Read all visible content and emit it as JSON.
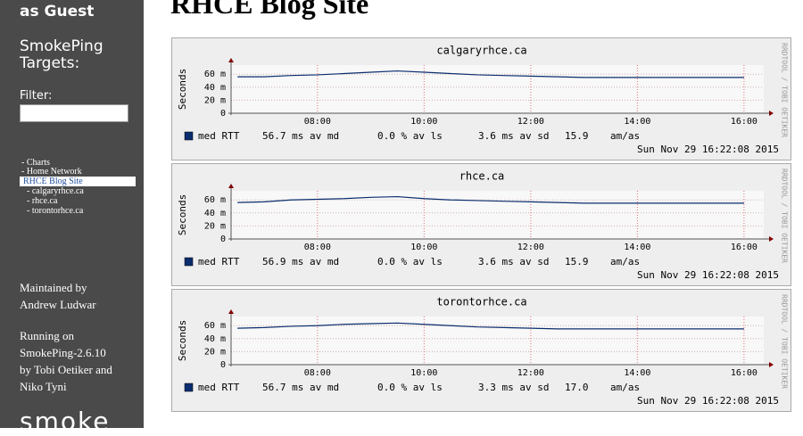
{
  "sidebar": {
    "login": "as Guest",
    "targets_title": [
      "SmokePing",
      "Targets:"
    ],
    "filter_label": "Filter:",
    "menu": [
      "- Charts",
      "- Home Network",
      "RHCE Blog Site",
      "- calgaryrhce.ca",
      "- rhce.ca",
      "- torontorhce.ca"
    ],
    "maintained": [
      "Maintained by",
      "Andrew Ludwar"
    ],
    "running": [
      "Running on",
      "SmokePing-2.6.10",
      "by Tobi Oetiker and",
      "Niko Tyni"
    ],
    "logo": "smoke"
  },
  "heading": "RHCE Blog Site",
  "graphs": [
    {
      "type": "line",
      "title": "calgaryrhce.ca",
      "ylabel": "Seconds",
      "color": "#0a2d6e",
      "grid": true,
      "ylim": [
        0,
        0.074
      ],
      "yticks": [
        0,
        {
          "value": 0.02,
          "label": "20 m"
        },
        {
          "value": 0.04,
          "label": "40 m"
        },
        {
          "value": 0.06,
          "label": "60 m"
        }
      ],
      "xlim": [
        6.38,
        16.37
      ],
      "xticks": [
        {
          "value": 8,
          "label": "08:00"
        },
        {
          "value": 10,
          "label": "10:00"
        },
        {
          "value": 12,
          "label": "12:00"
        },
        {
          "value": 14,
          "label": "14:00"
        },
        {
          "value": 16,
          "label": "16:00"
        }
      ],
      "x": [
        6.5,
        7,
        7.5,
        8,
        8.5,
        9,
        9.5,
        10,
        10.5,
        11,
        11.5,
        12,
        12.5,
        13,
        13.5,
        14,
        14.5,
        15,
        15.5,
        16
      ],
      "values": [
        0.056,
        0.056,
        0.058,
        0.059,
        0.061,
        0.063,
        0.065,
        0.063,
        0.061,
        0.059,
        0.058,
        0.057,
        0.056,
        0.055,
        0.055,
        0.055,
        0.055,
        0.055,
        0.055,
        0.055
      ],
      "legend": {
        "name": "med RTT",
        "median": "56.7 ms av md",
        "loss": "0.0 % av ls",
        "sd": "3.6 ms av sd",
        "ratio": "15.9",
        "ratio_unit": "am/as"
      },
      "timestamp": "Sun Nov 29 16:22:08 2015",
      "watermark": "RRDTOOL / TOBI OETIKER"
    },
    {
      "type": "line",
      "title": "rhce.ca",
      "ylabel": "Seconds",
      "color": "#0a2d6e",
      "grid": true,
      "ylim": [
        0,
        0.074
      ],
      "yticks": [
        0,
        {
          "value": 0.02,
          "label": "20 m"
        },
        {
          "value": 0.04,
          "label": "40 m"
        },
        {
          "value": 0.06,
          "label": "60 m"
        }
      ],
      "xlim": [
        6.38,
        16.37
      ],
      "xticks": [
        {
          "value": 8,
          "label": "08:00"
        },
        {
          "value": 10,
          "label": "10:00"
        },
        {
          "value": 12,
          "label": "12:00"
        },
        {
          "value": 14,
          "label": "14:00"
        },
        {
          "value": 16,
          "label": "16:00"
        }
      ],
      "x": [
        6.5,
        7,
        7.5,
        8,
        8.5,
        9,
        9.5,
        10,
        10.5,
        11,
        11.5,
        12,
        12.5,
        13,
        13.5,
        14,
        14.5,
        15,
        15.5,
        16
      ],
      "values": [
        0.056,
        0.057,
        0.06,
        0.061,
        0.062,
        0.064,
        0.065,
        0.062,
        0.06,
        0.059,
        0.058,
        0.057,
        0.056,
        0.055,
        0.055,
        0.055,
        0.055,
        0.055,
        0.055,
        0.055
      ],
      "legend": {
        "name": "med RTT",
        "median": "56.9 ms av md",
        "loss": "0.0 % av ls",
        "sd": "3.6 ms av sd",
        "ratio": "15.9",
        "ratio_unit": "am/as"
      },
      "timestamp": "Sun Nov 29 16:22:08 2015",
      "watermark": "RRDTOOL / TOBI OETIKER"
    },
    {
      "type": "line",
      "title": "torontorhce.ca",
      "ylabel": "Seconds",
      "color": "#0a2d6e",
      "grid": true,
      "ylim": [
        0,
        0.074
      ],
      "yticks": [
        0,
        {
          "value": 0.02,
          "label": "20 m"
        },
        {
          "value": 0.04,
          "label": "40 m"
        },
        {
          "value": 0.06,
          "label": "60 m"
        }
      ],
      "xlim": [
        6.38,
        16.37
      ],
      "xticks": [
        {
          "value": 8,
          "label": "08:00"
        },
        {
          "value": 10,
          "label": "10:00"
        },
        {
          "value": 12,
          "label": "12:00"
        },
        {
          "value": 14,
          "label": "14:00"
        },
        {
          "value": 16,
          "label": "16:00"
        }
      ],
      "x": [
        6.5,
        7,
        7.5,
        8,
        8.5,
        9,
        9.5,
        10,
        10.5,
        11,
        11.5,
        12,
        12.5,
        13,
        13.5,
        14,
        14.5,
        15,
        15.5,
        16
      ],
      "values": [
        0.056,
        0.057,
        0.059,
        0.06,
        0.062,
        0.063,
        0.064,
        0.062,
        0.06,
        0.058,
        0.057,
        0.056,
        0.055,
        0.055,
        0.055,
        0.055,
        0.055,
        0.055,
        0.055,
        0.055
      ],
      "legend": {
        "name": "med RTT",
        "median": "56.7 ms av md",
        "loss": "0.0 % av ls",
        "sd": "3.3 ms av sd",
        "ratio": "17.0",
        "ratio_unit": "am/as"
      },
      "timestamp": "Sun Nov 29 16:22:08 2015",
      "watermark": "RRDTOOL / TOBI OETIKER"
    }
  ]
}
